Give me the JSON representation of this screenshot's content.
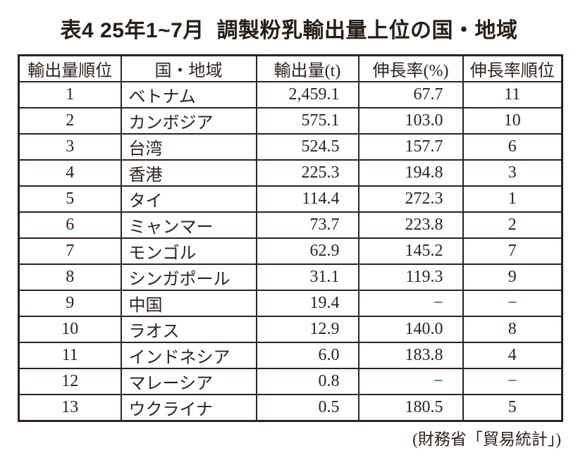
{
  "chart_data": {
    "type": "table",
    "title": "表4 25年1~7月  調製粉乳輸出量上位の国・地域",
    "columns": [
      "輸出量順位",
      "国・地域",
      "輸出量(t)",
      "伸長率(%)",
      "伸長率順位"
    ],
    "rows": [
      [
        "1",
        "ベトナム",
        "2,459.1",
        "67.7",
        "11"
      ],
      [
        "2",
        "カンボジア",
        "575.1",
        "103.0",
        "10"
      ],
      [
        "3",
        "台湾",
        "524.5",
        "157.7",
        "6"
      ],
      [
        "4",
        "香港",
        "225.3",
        "194.8",
        "3"
      ],
      [
        "5",
        "タイ",
        "114.4",
        "272.3",
        "1"
      ],
      [
        "6",
        "ミャンマー",
        "73.7",
        "223.8",
        "2"
      ],
      [
        "7",
        "モンゴル",
        "62.9",
        "145.2",
        "7"
      ],
      [
        "8",
        "シンガポール",
        "31.1",
        "119.3",
        "9"
      ],
      [
        "9",
        "中国",
        "19.4",
        "−",
        "−"
      ],
      [
        "10",
        "ラオス",
        "12.9",
        "140.0",
        "8"
      ],
      [
        "11",
        "インドネシア",
        "6.0",
        "183.8",
        "4"
      ],
      [
        "12",
        "マレーシア",
        "0.8",
        "−",
        "−"
      ],
      [
        "13",
        "ウクライナ",
        "0.5",
        "180.5",
        "5"
      ]
    ],
    "source": "(財務省「貿易統計」)",
    "layout_hints": {
      "header_align": "center",
      "column_align": [
        "center",
        "left",
        "right",
        "right",
        "center"
      ]
    }
  },
  "colors": {
    "text": "#2b2320",
    "border": "#2b2320",
    "background": "#ffffff"
  }
}
